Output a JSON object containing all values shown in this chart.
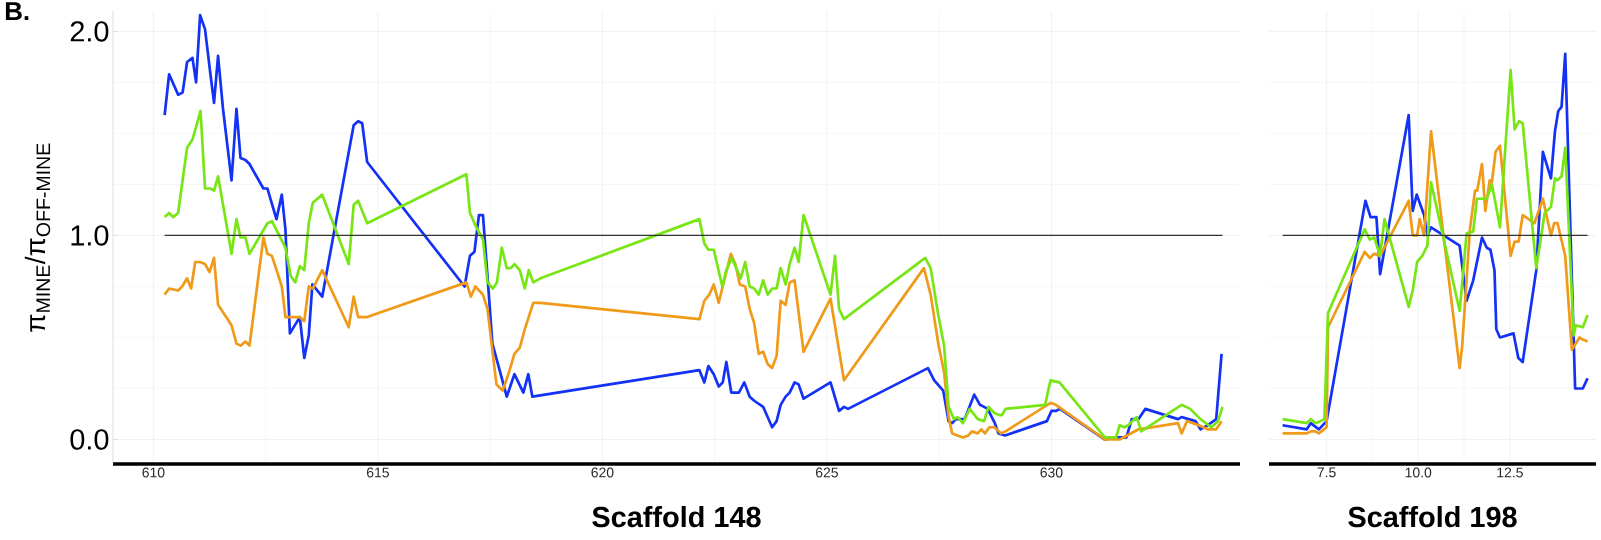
{
  "chart_data": [
    {
      "type": "line",
      "xlabel": "Scaffold 148",
      "ylabel": "π$_{MINE}$/π$_{OFF-MINE}$",
      "annotations": [
        "B."
      ],
      "xlim": [
        609.1,
        634.2
      ],
      "xticks": [
        610,
        615,
        620,
        625,
        630
      ],
      "ylim": [
        -0.12,
        2.1
      ],
      "yticks": [
        {
          "value": 0,
          "label": "0.0"
        },
        {
          "value": 1,
          "label": "1.0"
        },
        {
          "value": 2,
          "label": "2.0"
        }
      ],
      "grid": true,
      "ref_lines": [
        {
          "axis": "y",
          "value": 1,
          "color": "#333333"
        }
      ],
      "series": [
        {
          "color": "#1432f5",
          "x": [
            610.25,
            610.35,
            610.55,
            610.65,
            610.75,
            610.87,
            610.95,
            611.04,
            611.15,
            611.27,
            611.35,
            611.44,
            611.55,
            611.74,
            611.85,
            611.94,
            612.05,
            612.14,
            612.45,
            612.54,
            612.74,
            612.86,
            612.94,
            613.04,
            613.26,
            613.36,
            613.46,
            613.54,
            613.76,
            614.46,
            614.56,
            614.65,
            614.76,
            616.93,
            617.05,
            617.15,
            617.25,
            617.34,
            617.55,
            617.87,
            618.04,
            618.24,
            618.35,
            618.44,
            622.16,
            622.27,
            622.36,
            622.48,
            622.59,
            622.68,
            622.76,
            622.87,
            623.04,
            623.16,
            623.28,
            623.38,
            623.58,
            623.78,
            623.88,
            623.97,
            624.08,
            624.17,
            624.28,
            624.37,
            624.48,
            625.08,
            625.27,
            625.38,
            625.47,
            627.25,
            627.39,
            627.59,
            627.71,
            627.79,
            627.87,
            628.07,
            628.28,
            628.41,
            628.5,
            628.58,
            628.74,
            628.82,
            628.97,
            629.9,
            630.0,
            630.1,
            630.19,
            631.19,
            631.44,
            631.67,
            631.79,
            631.94,
            632.09,
            632.82,
            632.9,
            633.05,
            633.21,
            633.32,
            633.48,
            633.67,
            633.79
          ],
          "values": [
            1.59,
            1.79,
            1.69,
            1.7,
            1.85,
            1.87,
            1.75,
            2.08,
            2.01,
            1.79,
            1.65,
            1.88,
            1.62,
            1.27,
            1.62,
            1.38,
            1.37,
            1.35,
            1.23,
            1.23,
            1.08,
            1.2,
            1.03,
            0.52,
            0.6,
            0.4,
            0.51,
            0.76,
            0.7,
            1.54,
            1.56,
            1.55,
            1.36,
            0.75,
            0.9,
            0.92,
            1.1,
            1.1,
            0.47,
            0.21,
            0.32,
            0.23,
            0.32,
            0.21,
            0.34,
            0.28,
            0.36,
            0.32,
            0.26,
            0.28,
            0.38,
            0.23,
            0.23,
            0.28,
            0.21,
            0.19,
            0.16,
            0.06,
            0.09,
            0.17,
            0.21,
            0.23,
            0.28,
            0.27,
            0.2,
            0.28,
            0.14,
            0.16,
            0.15,
            0.35,
            0.29,
            0.24,
            0.09,
            0.08,
            0.1,
            0.1,
            0.22,
            0.17,
            0.16,
            0.15,
            0.08,
            0.03,
            0.02,
            0.09,
            0.14,
            0.14,
            0.15,
            0.0,
            0.01,
            0.01,
            0.1,
            0.1,
            0.15,
            0.1,
            0.11,
            0.1,
            0.09,
            0.05,
            0.07,
            0.1,
            0.42
          ]
        },
        {
          "color": "#f09a1a",
          "x": [
            610.25,
            610.35,
            610.55,
            610.64,
            610.75,
            610.84,
            610.93,
            611.04,
            611.15,
            611.25,
            611.35,
            611.44,
            611.74,
            611.85,
            611.94,
            612.05,
            612.14,
            612.45,
            612.54,
            612.64,
            612.86,
            612.94,
            613.26,
            613.36,
            613.46,
            613.55,
            613.76,
            614.35,
            614.46,
            614.56,
            614.76,
            616.97,
            617.07,
            617.17,
            617.34,
            617.44,
            617.64,
            617.78,
            617.92,
            618.04,
            618.16,
            618.27,
            618.46,
            618.62,
            622.16,
            622.27,
            622.38,
            622.48,
            622.59,
            622.86,
            622.96,
            623.06,
            623.18,
            623.28,
            623.38,
            623.48,
            623.58,
            623.68,
            623.78,
            623.88,
            623.97,
            624.08,
            624.17,
            624.28,
            624.48,
            625.08,
            625.38,
            627.16,
            627.31,
            627.48,
            627.61,
            627.71,
            627.79,
            627.91,
            628.03,
            628.15,
            628.23,
            628.36,
            628.44,
            628.52,
            628.62,
            628.73,
            628.88,
            628.98,
            629.98,
            630.1,
            631.19,
            631.52,
            631.94,
            632.82,
            632.9,
            633.02,
            633.28,
            633.48,
            633.67,
            633.79
          ],
          "values": [
            0.71,
            0.74,
            0.73,
            0.75,
            0.79,
            0.74,
            0.87,
            0.87,
            0.86,
            0.82,
            0.89,
            0.66,
            0.56,
            0.47,
            0.46,
            0.48,
            0.46,
            0.99,
            0.91,
            0.9,
            0.75,
            0.6,
            0.6,
            0.58,
            0.75,
            0.74,
            0.83,
            0.55,
            0.7,
            0.6,
            0.6,
            0.77,
            0.7,
            0.75,
            0.71,
            0.64,
            0.27,
            0.24,
            0.33,
            0.42,
            0.45,
            0.54,
            0.67,
            0.67,
            0.59,
            0.68,
            0.71,
            0.76,
            0.67,
            0.91,
            0.86,
            0.76,
            0.75,
            0.64,
            0.57,
            0.42,
            0.43,
            0.37,
            0.35,
            0.41,
            0.68,
            0.66,
            0.77,
            0.78,
            0.43,
            0.69,
            0.29,
            0.84,
            0.71,
            0.47,
            0.33,
            0.11,
            0.03,
            0.02,
            0.01,
            0.02,
            0.04,
            0.03,
            0.05,
            0.03,
            0.06,
            0.06,
            0.03,
            0.04,
            0.18,
            0.17,
            0.0,
            0.0,
            0.05,
            0.08,
            0.03,
            0.09,
            0.07,
            0.05,
            0.05,
            0.09
          ]
        },
        {
          "color": "#78e614",
          "x": [
            610.25,
            610.35,
            610.44,
            610.55,
            610.75,
            610.87,
            611.05,
            611.15,
            611.27,
            611.35,
            611.44,
            611.74,
            611.85,
            611.94,
            612.05,
            612.14,
            612.54,
            612.64,
            612.94,
            613.06,
            613.16,
            613.26,
            613.36,
            613.46,
            613.55,
            613.76,
            614.35,
            614.46,
            614.56,
            614.76,
            616.97,
            617.05,
            617.17,
            617.34,
            617.44,
            617.56,
            617.65,
            617.76,
            617.87,
            617.96,
            618.04,
            618.16,
            618.27,
            618.36,
            618.46,
            618.62,
            622.16,
            622.27,
            622.36,
            622.48,
            622.67,
            622.76,
            622.88,
            623.08,
            623.18,
            623.28,
            623.38,
            623.48,
            623.58,
            623.68,
            623.78,
            623.88,
            623.97,
            624.08,
            624.17,
            624.28,
            624.37,
            624.48,
            625.08,
            625.18,
            625.27,
            625.38,
            627.19,
            627.31,
            627.48,
            627.61,
            627.71,
            627.83,
            627.91,
            628.03,
            628.18,
            628.36,
            628.5,
            628.6,
            628.73,
            628.84,
            628.9,
            628.98,
            629.86,
            629.98,
            630.18,
            631.19,
            631.44,
            631.52,
            631.63,
            631.71,
            631.9,
            632.0,
            632.9,
            633.09,
            633.32,
            633.56,
            633.71,
            633.81
          ],
          "values": [
            1.09,
            1.11,
            1.09,
            1.11,
            1.43,
            1.47,
            1.61,
            1.23,
            1.23,
            1.22,
            1.29,
            0.91,
            1.08,
            0.99,
            0.99,
            0.91,
            1.06,
            1.07,
            0.94,
            0.8,
            0.77,
            0.85,
            0.83,
            1.06,
            1.16,
            1.2,
            0.86,
            1.15,
            1.17,
            1.06,
            1.3,
            1.11,
            1.05,
            0.98,
            0.77,
            0.74,
            0.77,
            0.94,
            0.84,
            0.84,
            0.86,
            0.83,
            0.74,
            0.83,
            0.77,
            0.79,
            1.08,
            0.96,
            0.93,
            0.93,
            0.75,
            0.83,
            0.89,
            0.79,
            0.87,
            0.75,
            0.74,
            0.71,
            0.78,
            0.71,
            0.74,
            0.74,
            0.84,
            0.76,
            0.86,
            0.94,
            0.87,
            1.1,
            0.71,
            0.9,
            0.64,
            0.59,
            0.89,
            0.84,
            0.61,
            0.46,
            0.16,
            0.1,
            0.11,
            0.08,
            0.15,
            0.1,
            0.09,
            0.16,
            0.13,
            0.12,
            0.12,
            0.15,
            0.17,
            0.29,
            0.28,
            0.01,
            0.01,
            0.07,
            0.06,
            0.07,
            0.11,
            0.04,
            0.17,
            0.15,
            0.1,
            0.06,
            0.09,
            0.16
          ]
        }
      ]
    },
    {
      "type": "line",
      "xlabel": "Scaffold 198",
      "tick_labels": "x",
      "xlim": [
        5.93,
        14.85
      ],
      "xticks": [
        7.5,
        {
          "value": 10,
          "label": "10.0"
        },
        12.5
      ],
      "ylim": [
        -0.12,
        2.1
      ],
      "yticks": [
        0,
        1,
        2
      ],
      "grid": true,
      "ref_lines": [
        {
          "axis": "y",
          "value": 1,
          "color": "#333333"
        }
      ],
      "series": [
        {
          "color": "#1432f5",
          "x": [
            6.3,
            6.96,
            7.07,
            7.29,
            7.5,
            8.56,
            8.7,
            8.86,
            8.96,
            9.74,
            9.85,
            9.96,
            10.16,
            10.25,
            10.35,
            11.13,
            11.32,
            11.5,
            11.74,
            11.87,
            11.97,
            12.08,
            12.13,
            12.23,
            12.6,
            12.73,
            12.85,
            13.22,
            13.4,
            13.62,
            13.73,
            13.82,
            13.91,
            14.01,
            14.28,
            14.49,
            14.62
          ],
          "values": [
            0.07,
            0.05,
            0.08,
            0.05,
            0.09,
            1.17,
            1.09,
            1.09,
            0.81,
            1.59,
            1.12,
            1.2,
            1.1,
            1.0,
            1.04,
            0.95,
            0.68,
            0.78,
            0.99,
            0.94,
            0.93,
            0.83,
            0.54,
            0.5,
            0.52,
            0.4,
            0.38,
            0.83,
            1.41,
            1.28,
            1.51,
            1.61,
            1.63,
            1.89,
            0.25,
            0.25,
            0.3
          ]
        },
        {
          "color": "#f09a1a",
          "x": [
            6.3,
            6.96,
            7.07,
            7.19,
            7.29,
            7.5,
            7.54,
            8.54,
            8.68,
            8.8,
            8.96,
            9.74,
            9.85,
            9.97,
            10.04,
            10.16,
            10.35,
            10.67,
            11.13,
            11.2,
            11.41,
            11.55,
            11.61,
            11.74,
            11.83,
            11.95,
            12.01,
            12.11,
            12.23,
            12.52,
            12.63,
            12.74,
            12.85,
            13.17,
            13.4,
            13.62,
            13.71,
            13.8,
            14.01,
            14.19,
            14.4,
            14.49,
            14.62
          ],
          "values": [
            0.03,
            0.03,
            0.04,
            0.04,
            0.03,
            0.06,
            0.55,
            0.92,
            0.89,
            0.91,
            0.9,
            1.17,
            1.0,
            1.0,
            1.08,
            1.0,
            1.51,
            1.03,
            0.35,
            0.46,
            1.03,
            1.22,
            1.22,
            1.35,
            1.12,
            1.27,
            1.26,
            1.41,
            1.44,
            0.9,
            0.97,
            0.97,
            1.1,
            1.06,
            1.18,
            1.0,
            1.06,
            1.06,
            0.9,
            0.44,
            0.5,
            0.49,
            0.48
          ]
        },
        {
          "color": "#78e614",
          "x": [
            6.3,
            6.96,
            7.07,
            7.19,
            7.33,
            7.44,
            7.54,
            8.54,
            8.68,
            8.8,
            8.96,
            9.08,
            9.74,
            9.85,
            9.97,
            10.11,
            10.25,
            10.35,
            11.13,
            11.32,
            11.5,
            11.6,
            11.87,
            12.01,
            12.23,
            12.52,
            12.63,
            12.75,
            12.85,
            13.22,
            13.45,
            13.62,
            13.73,
            13.8,
            13.91,
            14.01,
            14.24,
            14.3,
            14.49,
            14.62
          ],
          "values": [
            0.1,
            0.08,
            0.1,
            0.08,
            0.09,
            0.1,
            0.62,
            1.03,
            0.98,
            0.99,
            0.9,
            1.08,
            0.65,
            0.73,
            0.87,
            0.9,
            0.95,
            1.26,
            0.63,
            1.01,
            1.02,
            1.18,
            1.18,
            1.25,
            1.04,
            1.81,
            1.52,
            1.56,
            1.55,
            0.84,
            1.11,
            1.14,
            1.28,
            1.27,
            1.29,
            1.43,
            0.51,
            0.56,
            0.55,
            0.61
          ]
        }
      ]
    }
  ]
}
